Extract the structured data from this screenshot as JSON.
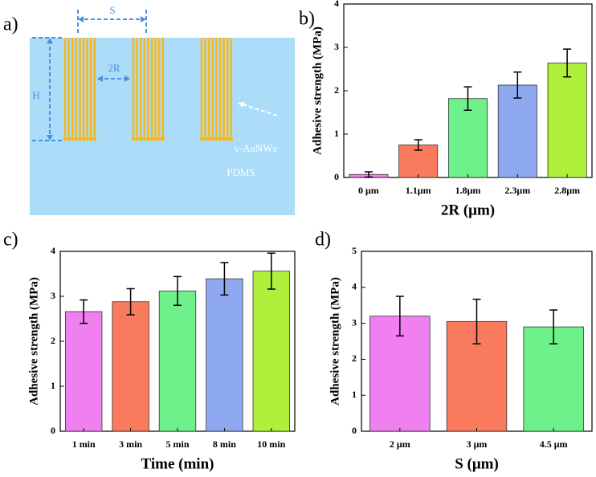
{
  "diagram": {
    "label": "a)",
    "spacing": "S",
    "diameter": "2R",
    "height": "H",
    "wires": "v-AuNWs",
    "substrate": "PDMS"
  },
  "chart_data": [
    {
      "type": "bar",
      "label": "b)",
      "xlabel": "2R (μm)",
      "ylabel": "Adhesive strength (MPa)",
      "categories": [
        "0 μm",
        "1.1μm",
        "1.8μm",
        "2.3μm",
        "2.8μm"
      ],
      "values": [
        0.07,
        0.75,
        1.82,
        2.13,
        2.64
      ],
      "errors": [
        0.06,
        0.12,
        0.27,
        0.3,
        0.32
      ],
      "colors": [
        "#f07ff0",
        "#fa7a5e",
        "#6ef08a",
        "#8ea8f0",
        "#b0f03c"
      ],
      "ylim": [
        0,
        4
      ],
      "yticks": [
        0,
        1,
        2,
        3,
        4
      ]
    },
    {
      "type": "bar",
      "label": "c)",
      "xlabel": "Time (min)",
      "ylabel": "Adhesive strength (MPa)",
      "categories": [
        "1 min",
        "3 min",
        "5 min",
        "8 min",
        "10 min"
      ],
      "values": [
        2.66,
        2.88,
        3.12,
        3.39,
        3.56
      ],
      "errors": [
        0.26,
        0.29,
        0.32,
        0.36,
        0.4
      ],
      "colors": [
        "#f07ff0",
        "#fa7a5e",
        "#6ef08a",
        "#8ea8f0",
        "#b0f03c"
      ],
      "ylim": [
        0,
        4
      ],
      "yticks": [
        0,
        1,
        2,
        3,
        4
      ]
    },
    {
      "type": "bar",
      "label": "d)",
      "xlabel": "S (μm)",
      "ylabel": "Adhesive strength (MPa)",
      "categories": [
        "2 μm",
        "3 μm",
        "4.5 μm"
      ],
      "values": [
        3.2,
        3.05,
        2.9
      ],
      "errors": [
        0.55,
        0.62,
        0.47
      ],
      "colors": [
        "#f07ff0",
        "#fa7a5e",
        "#6ef08a"
      ],
      "ylim": [
        0,
        5
      ],
      "yticks": [
        0,
        1,
        2,
        3,
        4,
        5
      ]
    }
  ]
}
